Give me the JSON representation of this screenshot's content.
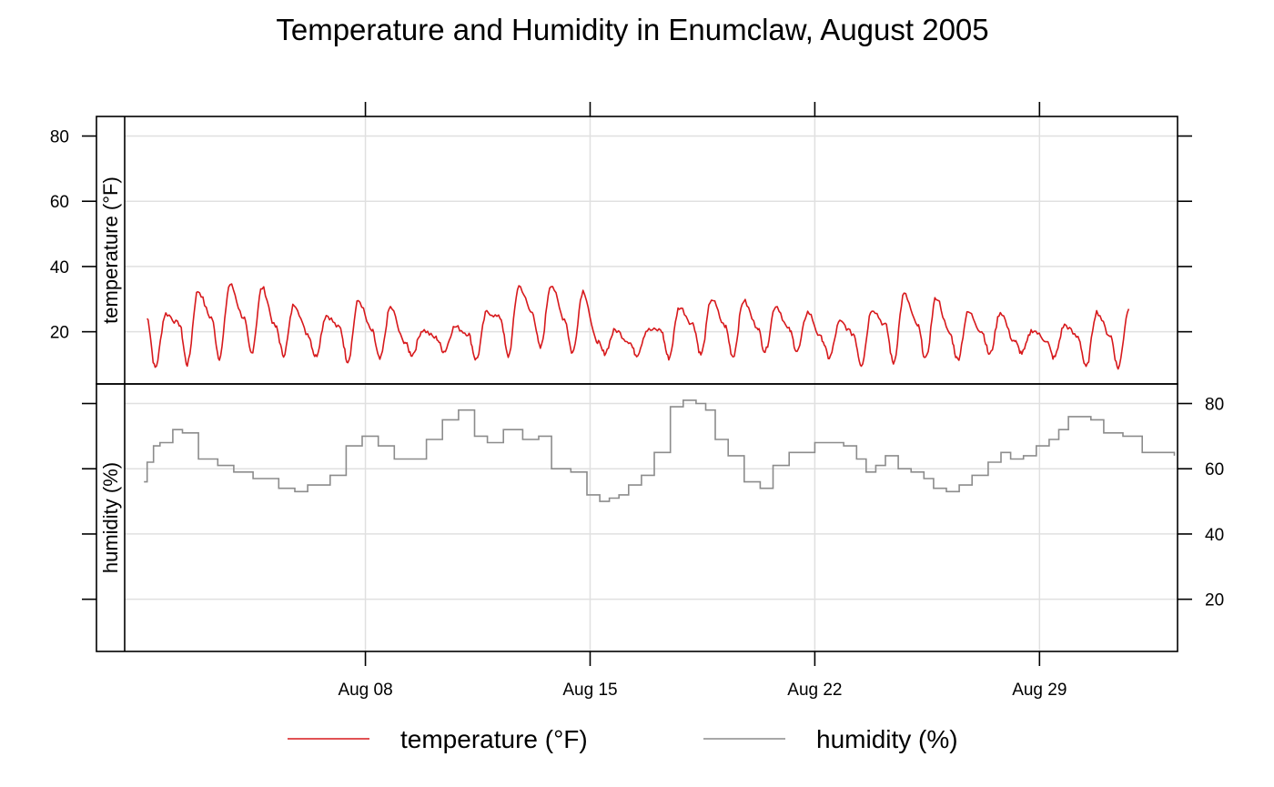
{
  "chart_data": {
    "type": "line",
    "title": "Temperature and Humidity in Enumclaw, August 2005",
    "x_tick_labels": [
      "Aug 08",
      "Aug 15",
      "Aug 22",
      "Aug 29"
    ],
    "x_ticks_day": [
      8,
      15,
      22,
      29
    ],
    "xlim_day": [
      0.5,
      33.3
    ],
    "grid": true,
    "legend_position": "bottom",
    "legend": [
      {
        "label": "temperature (°F)",
        "color": "#d7191c"
      },
      {
        "label": "humidity (%)",
        "color": "#8c8c8c"
      }
    ],
    "panels": [
      {
        "strip": "temperature (°F)",
        "color": "#d7191c",
        "ylim": [
          4,
          86
        ],
        "y_ticks": [
          20,
          40,
          60,
          80
        ],
        "tick_labels_side": "left",
        "peaks": [
          25.5,
          32.5,
          34.5,
          33.5,
          28.5,
          25,
          29.5,
          27.5,
          20.5,
          21.5,
          26,
          34,
          34.5,
          32.5,
          20.5,
          20.5,
          27.5,
          30,
          29.5,
          28,
          26,
          23,
          27,
          31.5,
          30.5,
          26,
          26,
          20.5,
          22,
          26,
          27
        ],
        "troughs": [
          9,
          10,
          12,
          13.5,
          13,
          12.5,
          11,
          11.5,
          13,
          14,
          11.5,
          12.5,
          15,
          13.5,
          13.5,
          13,
          12,
          13,
          12.5,
          14,
          14,
          12,
          10,
          10.5,
          11.5,
          11.5,
          13,
          13.5,
          12,
          9,
          9
        ]
      },
      {
        "strip": "humidity (%)",
        "color": "#8c8c8c",
        "ylim": [
          4,
          86
        ],
        "y_ticks": [
          20,
          40,
          60,
          80
        ],
        "tick_labels_side": "right",
        "series": {
          "x_day": [
            1.1,
            1.2,
            1.4,
            1.6,
            2.0,
            2.3,
            2.8,
            3.4,
            3.9,
            4.5,
            5.3,
            5.8,
            6.2,
            6.9,
            7.4,
            7.9,
            8.4,
            8.9,
            9.4,
            9.9,
            10.4,
            10.9,
            11.4,
            11.8,
            12.3,
            12.9,
            13.4,
            13.8,
            14.4,
            14.9,
            15.3,
            15.6,
            15.9,
            16.2,
            16.6,
            17.0,
            17.5,
            17.9,
            18.3,
            18.6,
            18.9,
            19.3,
            19.8,
            20.3,
            20.7,
            21.2,
            21.6,
            22.0,
            22.4,
            22.9,
            23.3,
            23.6,
            23.9,
            24.2,
            24.6,
            25.0,
            25.4,
            25.7,
            26.1,
            26.5,
            26.9,
            27.4,
            27.8,
            28.1,
            28.5,
            28.9,
            29.3,
            29.6,
            29.9,
            30.3,
            30.6,
            31.0,
            31.6,
            32.2,
            32.8,
            33.2
          ],
          "y": [
            56,
            62,
            67,
            68,
            72,
            71,
            63,
            61,
            59,
            57,
            54,
            53,
            55,
            58,
            67,
            70,
            67,
            63,
            63,
            69,
            75,
            78,
            70,
            68,
            72,
            69,
            70,
            60,
            59,
            52,
            50,
            51,
            52,
            55,
            58,
            65,
            79,
            81,
            80,
            78,
            69,
            64,
            56,
            54,
            61,
            65,
            65,
            68,
            68,
            67,
            63,
            59,
            61,
            64,
            60,
            59,
            57,
            54,
            53,
            55,
            58,
            62,
            65,
            63,
            64,
            67,
            69,
            72,
            76,
            76,
            75,
            71,
            70,
            65,
            65,
            64
          ]
        }
      }
    ]
  }
}
